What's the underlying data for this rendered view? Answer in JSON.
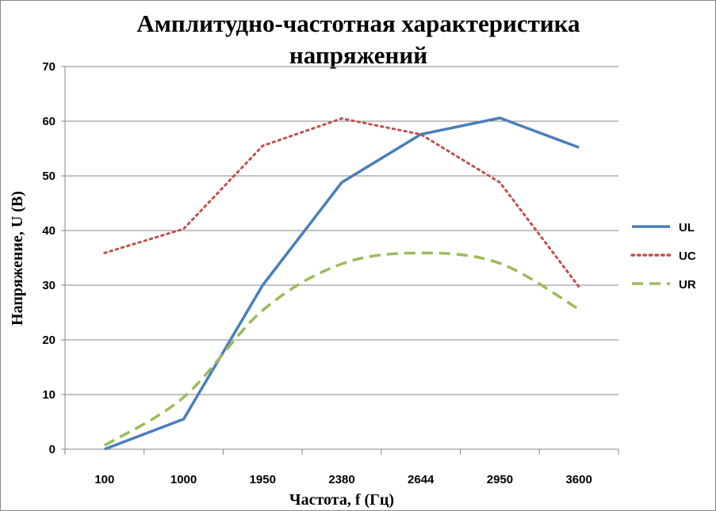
{
  "chart_data": {
    "type": "line",
    "title_lines": [
      "Амплитудно-частотная характеристика",
      "напряжений"
    ],
    "xlabel": "Частота, f (Гц)",
    "ylabel": "Напряжение, U (В)",
    "categories": [
      "100",
      "1000",
      "1950",
      "2380",
      "2644",
      "2950",
      "3600"
    ],
    "ylim": [
      0,
      70
    ],
    "yticks": [
      "0",
      "10",
      "20",
      "30",
      "40",
      "50",
      "60",
      "70"
    ],
    "grid": true,
    "legend_position": "right",
    "series": [
      {
        "name": "UL",
        "color": "#4a7ebb",
        "style": "solid",
        "values": [
          0,
          5.5,
          30,
          48.8,
          57.6,
          60.6,
          55.2
        ]
      },
      {
        "name": "UC",
        "color": "#c0504d",
        "style": "dotted",
        "values": [
          35.9,
          40.3,
          55.5,
          60.5,
          57.6,
          48.8,
          29.7
        ]
      },
      {
        "name": "UR",
        "color": "#9bbb59",
        "style": "dashed",
        "smooth": true,
        "values": [
          0.7,
          9.5,
          25.4,
          33.9,
          35.9,
          34.0,
          25.6
        ]
      }
    ]
  }
}
